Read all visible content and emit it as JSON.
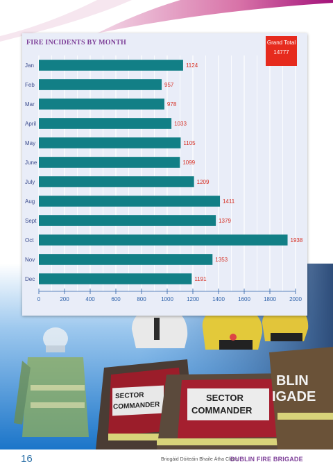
{
  "page": {
    "number": "16",
    "footer_irish": "Briogáid Dóiteáin Bhaile Átha Cliath",
    "footer_brand": "DUBLIN FIRE BRIGADE"
  },
  "grand_total": {
    "label": "Grand Total",
    "value": "14777"
  },
  "photo": {
    "vest_left": "SECTOR\nCOMMANDER",
    "vest_center": "SECTOR\nCOMMANDER",
    "jacket_text": "BLIN\nIGADE"
  },
  "colors": {
    "bar": "#127f86",
    "value_label": "#d62d20",
    "title": "#7d3f98",
    "grid": "#ffffff",
    "axis_tick": "#2a5fa8",
    "category_label": "#3a4a8c"
  },
  "chart_data": {
    "type": "bar",
    "orientation": "horizontal",
    "title": "FIRE INCIDENTS BY MONTH",
    "categories": [
      "Jan",
      "Feb",
      "Mar",
      "April",
      "May",
      "June",
      "July",
      "Aug",
      "Sept",
      "Oct",
      "Nov",
      "Dec"
    ],
    "values": [
      1124,
      957,
      978,
      1033,
      1105,
      1099,
      1209,
      1411,
      1379,
      1938,
      1353,
      1191
    ],
    "xlim": [
      0,
      2000
    ],
    "xticks": [
      0,
      200,
      400,
      600,
      800,
      1000,
      1200,
      1400,
      1600,
      1800,
      2000
    ],
    "grid": true,
    "data_labels": true
  }
}
